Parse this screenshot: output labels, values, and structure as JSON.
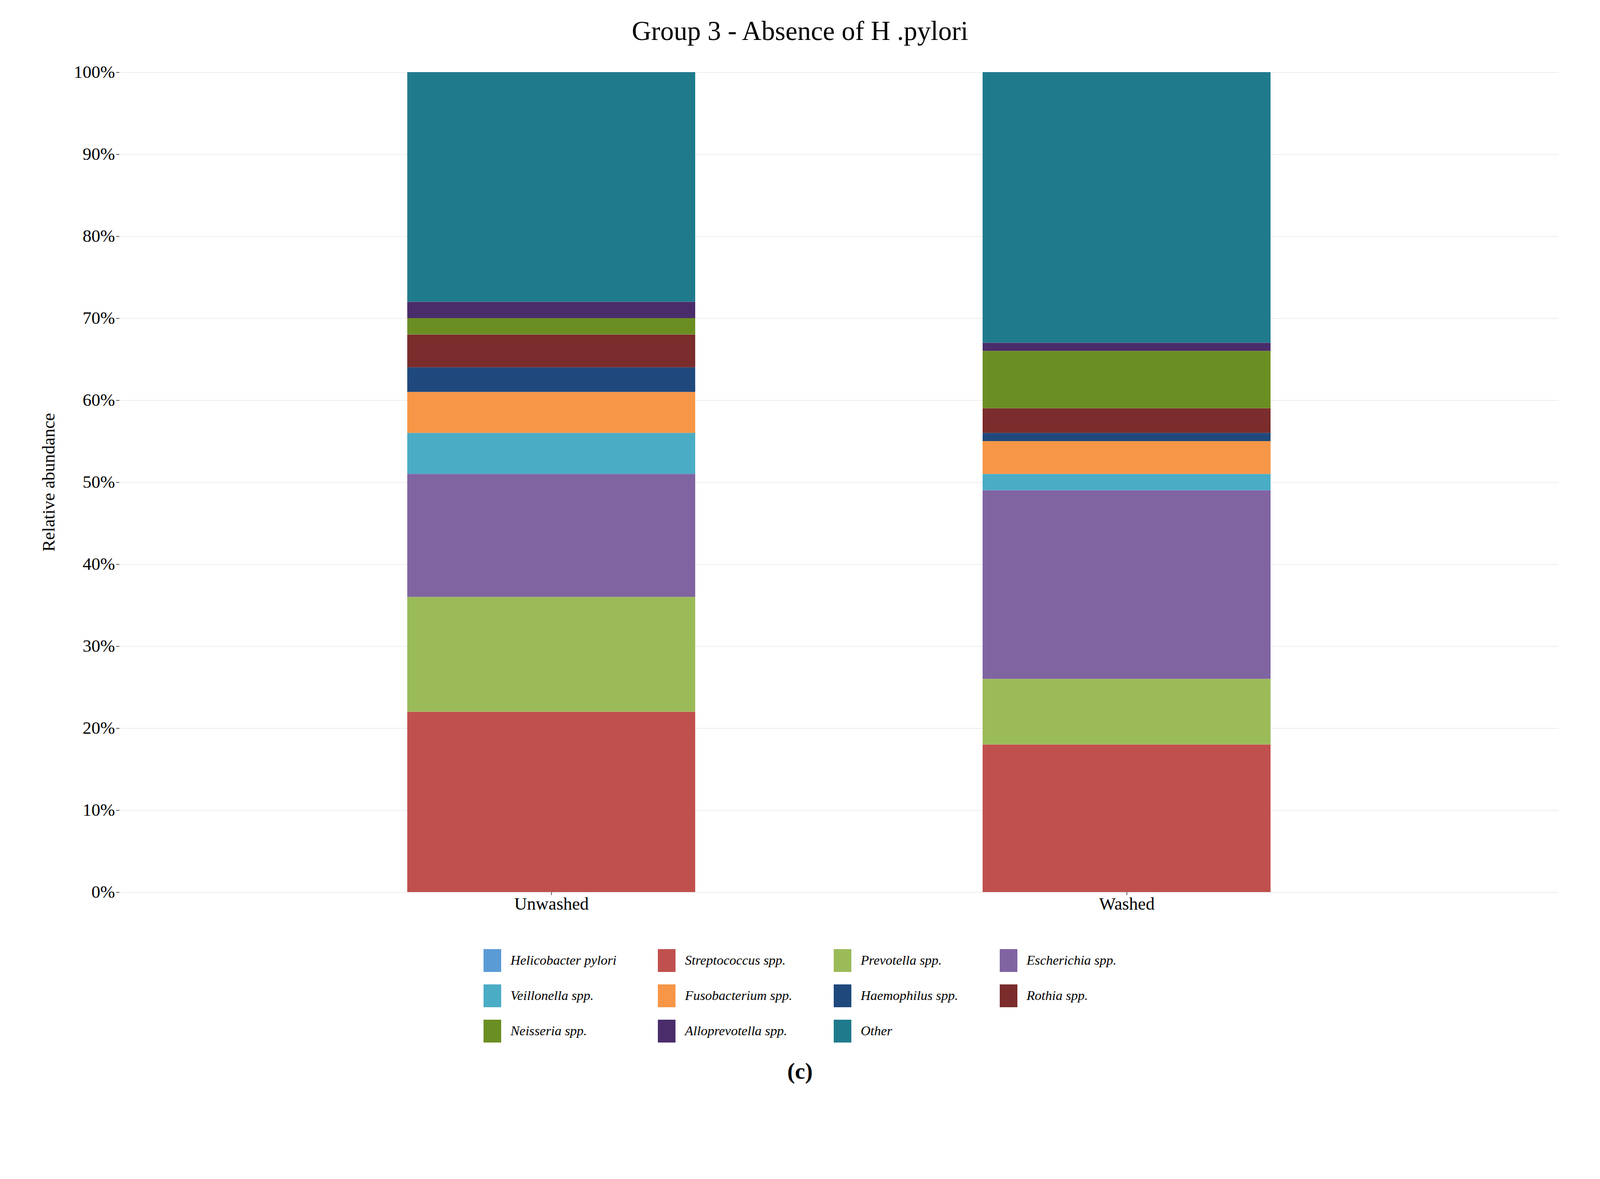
{
  "chart_data": {
    "type": "bar",
    "title": "Group 3 - Absence of H .pylori",
    "ylabel": "Relative abundance",
    "annotations": [
      "(c)"
    ],
    "categories": [
      "Unwashed",
      "Washed"
    ],
    "stacked": true,
    "series": [
      {
        "name": "Helicobacter pylori",
        "color": "#5B9BD5",
        "values": [
          0.0,
          0.0
        ]
      },
      {
        "name": "Streptococcus spp.",
        "color": "#C0504D",
        "values": [
          22.0,
          18.0
        ]
      },
      {
        "name": "Prevotella spp.",
        "color": "#9BBB59",
        "values": [
          14.0,
          8.0
        ]
      },
      {
        "name": "Escherichia spp.",
        "color": "#8064A2",
        "values": [
          15.0,
          23.0
        ]
      },
      {
        "name": "Veillonella spp.",
        "color": "#4BACC6",
        "values": [
          5.0,
          2.0
        ]
      },
      {
        "name": "Fusobacterium spp.",
        "color": "#F79646",
        "values": [
          5.0,
          4.0
        ]
      },
      {
        "name": "Haemophilus spp.",
        "color": "#1F497D",
        "values": [
          3.0,
          1.0
        ]
      },
      {
        "name": "Rothia spp.",
        "color": "#7B2C2C",
        "values": [
          4.0,
          3.0
        ]
      },
      {
        "name": "Neisseria spp.",
        "color": "#6B8E23",
        "values": [
          2.0,
          7.0
        ]
      },
      {
        "name": "Alloprevotella spp.",
        "color": "#4B2C6B",
        "values": [
          2.0,
          1.0
        ]
      },
      {
        "name": "Other",
        "color": "#1F7B8C",
        "values": [
          28.0,
          33.0
        ]
      }
    ],
    "ylim": [
      0,
      100
    ],
    "yticks": [
      {
        "value": 0,
        "label": "0%"
      },
      {
        "value": 10,
        "label": "10%"
      },
      {
        "value": 20,
        "label": "20%"
      },
      {
        "value": 30,
        "label": "30%"
      },
      {
        "value": 40,
        "label": "40%"
      },
      {
        "value": 50,
        "label": "50%"
      },
      {
        "value": 60,
        "label": "60%"
      },
      {
        "value": 70,
        "label": "70%"
      },
      {
        "value": 80,
        "label": "80%"
      },
      {
        "value": 90,
        "label": "90%"
      },
      {
        "value": 100,
        "label": "100%"
      }
    ],
    "grid": true,
    "legend": "bottom"
  }
}
